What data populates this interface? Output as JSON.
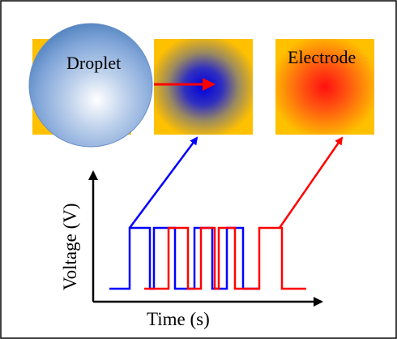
{
  "labels": {
    "droplet": "Droplet",
    "electrode": "Electrode",
    "y_axis": "Voltage (V)",
    "x_axis": "Time (s)"
  },
  "colors": {
    "frame": "#000000",
    "electrode_background": "#FFC000",
    "electrode_hot_center": "#FF1010",
    "electrode_active_center": "#0000E0",
    "droplet_highlight": "#FFFFFF",
    "droplet_edge": "#4F81BD",
    "blue_signal": "#0000FF",
    "red_signal": "#FF0000",
    "move_arrow": "#FF0000"
  }
}
